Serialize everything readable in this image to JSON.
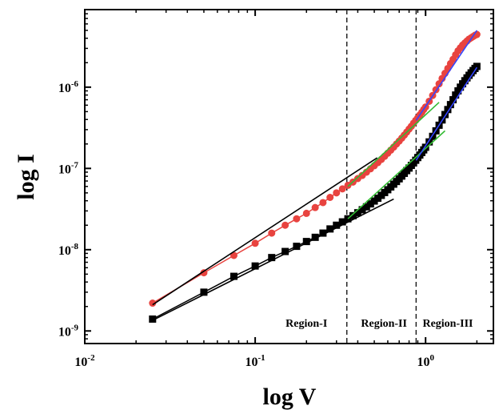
{
  "chart_data": {
    "type": "scatter",
    "xscale": "log",
    "yscale": "log",
    "xlim": [
      0.01,
      2.5
    ],
    "ylim": [
      7e-10,
      9e-06
    ],
    "xlabel": "log V",
    "ylabel": "log I",
    "x_ticks": [
      {
        "value": 0.01,
        "base": "10",
        "exp": "-2"
      },
      {
        "value": 0.1,
        "base": "10",
        "exp": "-1"
      },
      {
        "value": 1,
        "base": "10",
        "exp": "0"
      }
    ],
    "y_ticks": [
      {
        "value": 1e-09,
        "base": "10",
        "exp": "-9"
      },
      {
        "value": 1e-08,
        "base": "10",
        "exp": "-8"
      },
      {
        "value": 1e-07,
        "base": "10",
        "exp": "-7"
      },
      {
        "value": 1e-06,
        "base": "10",
        "exp": "-6"
      }
    ],
    "region_boundaries": [
      0.345,
      0.88
    ],
    "regions": [
      {
        "label": "Region-I",
        "x": 0.2
      },
      {
        "label": "Region-II",
        "x": 0.57
      },
      {
        "label": "Region-III",
        "x": 1.35
      }
    ],
    "series": [
      {
        "marker": "circle",
        "color": "#e8433f",
        "x": [
          0.025,
          0.05,
          0.075,
          0.1,
          0.125,
          0.15,
          0.175,
          0.2,
          0.225,
          0.25,
          0.275,
          0.3,
          0.325,
          0.35,
          0.375,
          0.4,
          0.425,
          0.45,
          0.475,
          0.5,
          0.525,
          0.55,
          0.575,
          0.6,
          0.625,
          0.65,
          0.675,
          0.7,
          0.725,
          0.75,
          0.775,
          0.8,
          0.825,
          0.85,
          0.875,
          0.9,
          0.925,
          0.95,
          0.975,
          1.0,
          1.05,
          1.1,
          1.15,
          1.2,
          1.25,
          1.3,
          1.35,
          1.4,
          1.45,
          1.5,
          1.55,
          1.6,
          1.65,
          1.7,
          1.75,
          1.8,
          1.85,
          1.9,
          1.95,
          2.0
        ],
        "y": [
          2.2e-09,
          5.2e-09,
          8.5e-09,
          1.2e-08,
          1.6e-08,
          2e-08,
          2.4e-08,
          2.8e-08,
          3.3e-08,
          3.8e-08,
          4.4e-08,
          5e-08,
          5.6e-08,
          6.2e-08,
          6.8e-08,
          7.5e-08,
          8.2e-08,
          9e-08,
          9.9e-08,
          1.08e-07,
          1.18e-07,
          1.29e-07,
          1.41e-07,
          1.54e-07,
          1.68e-07,
          1.83e-07,
          2e-07,
          2.17e-07,
          2.36e-07,
          2.57e-07,
          2.8e-07,
          3.05e-07,
          3.3e-07,
          3.6e-07,
          3.9e-07,
          4.2e-07,
          4.55e-07,
          4.9e-07,
          5.3e-07,
          5.7e-07,
          6.7e-07,
          7.9e-07,
          9.3e-07,
          1.1e-06,
          1.28e-06,
          1.48e-06,
          1.7e-06,
          1.95e-06,
          2.2e-06,
          2.5e-06,
          2.8e-06,
          3.05e-06,
          3.3e-06,
          3.5e-06,
          3.7e-06,
          3.9e-06,
          4.05e-06,
          4.2e-06,
          4.35e-06,
          4.45e-06
        ]
      },
      {
        "marker": "square",
        "color": "#000000",
        "x": [
          0.025,
          0.05,
          0.075,
          0.1,
          0.125,
          0.15,
          0.175,
          0.2,
          0.225,
          0.25,
          0.275,
          0.3,
          0.325,
          0.35,
          0.375,
          0.4,
          0.425,
          0.45,
          0.475,
          0.5,
          0.525,
          0.55,
          0.575,
          0.6,
          0.625,
          0.65,
          0.675,
          0.7,
          0.725,
          0.75,
          0.775,
          0.8,
          0.825,
          0.85,
          0.875,
          0.9,
          0.925,
          0.95,
          0.975,
          1.0,
          1.05,
          1.1,
          1.15,
          1.2,
          1.25,
          1.3,
          1.35,
          1.4,
          1.45,
          1.5,
          1.55,
          1.6,
          1.65,
          1.7,
          1.75,
          1.8,
          1.85,
          1.9,
          1.95,
          2.0
        ],
        "y": [
          1.4e-09,
          3e-09,
          4.7e-09,
          6.3e-09,
          8e-09,
          9.5e-09,
          1.1e-08,
          1.26e-08,
          1.42e-08,
          1.6e-08,
          1.8e-08,
          2e-08,
          2.2e-08,
          2.4e-08,
          2.62e-08,
          2.85e-08,
          3.1e-08,
          3.37e-08,
          3.66e-08,
          3.97e-08,
          4.3e-08,
          4.66e-08,
          5.05e-08,
          5.47e-08,
          5.92e-08,
          6.4e-08,
          6.9e-08,
          7.45e-08,
          8.05e-08,
          8.7e-08,
          9.4e-08,
          1.01e-07,
          1.09e-07,
          1.17e-07,
          1.26e-07,
          1.36e-07,
          1.46e-07,
          1.57e-07,
          1.69e-07,
          1.82e-07,
          2.12e-07,
          2.48e-07,
          2.9e-07,
          3.4e-07,
          3.95e-07,
          4.6e-07,
          5.3e-07,
          6.1e-07,
          7e-07,
          8e-07,
          9e-07,
          1e-06,
          1.1e-06,
          1.2e-06,
          1.3e-06,
          1.4e-06,
          1.5e-06,
          1.6e-06,
          1.7e-06,
          1.8e-06
        ]
      }
    ],
    "fit_lines": [
      {
        "color": "#000000",
        "x": [
          0.025,
          0.52
        ],
        "y": [
          2.1e-09,
          1.35e-07
        ]
      },
      {
        "color": "#000000",
        "x": [
          0.025,
          0.65
        ],
        "y": [
          1.35e-09,
          4.2e-08
        ]
      },
      {
        "color": "#33bb33",
        "x": [
          0.35,
          1.2
        ],
        "y": [
          6e-08,
          6.5e-07
        ]
      },
      {
        "color": "#33bb33",
        "x": [
          0.35,
          1.3
        ],
        "y": [
          2.4e-08,
          2.9e-07
        ]
      },
      {
        "color": "#3344ff",
        "x": [
          0.88,
          2.0
        ],
        "y": [
          3.9e-07,
          5e-06
        ]
      },
      {
        "color": "#3344ff",
        "x": [
          0.88,
          2.0
        ],
        "y": [
          1.26e-07,
          1.75e-06
        ]
      }
    ]
  }
}
